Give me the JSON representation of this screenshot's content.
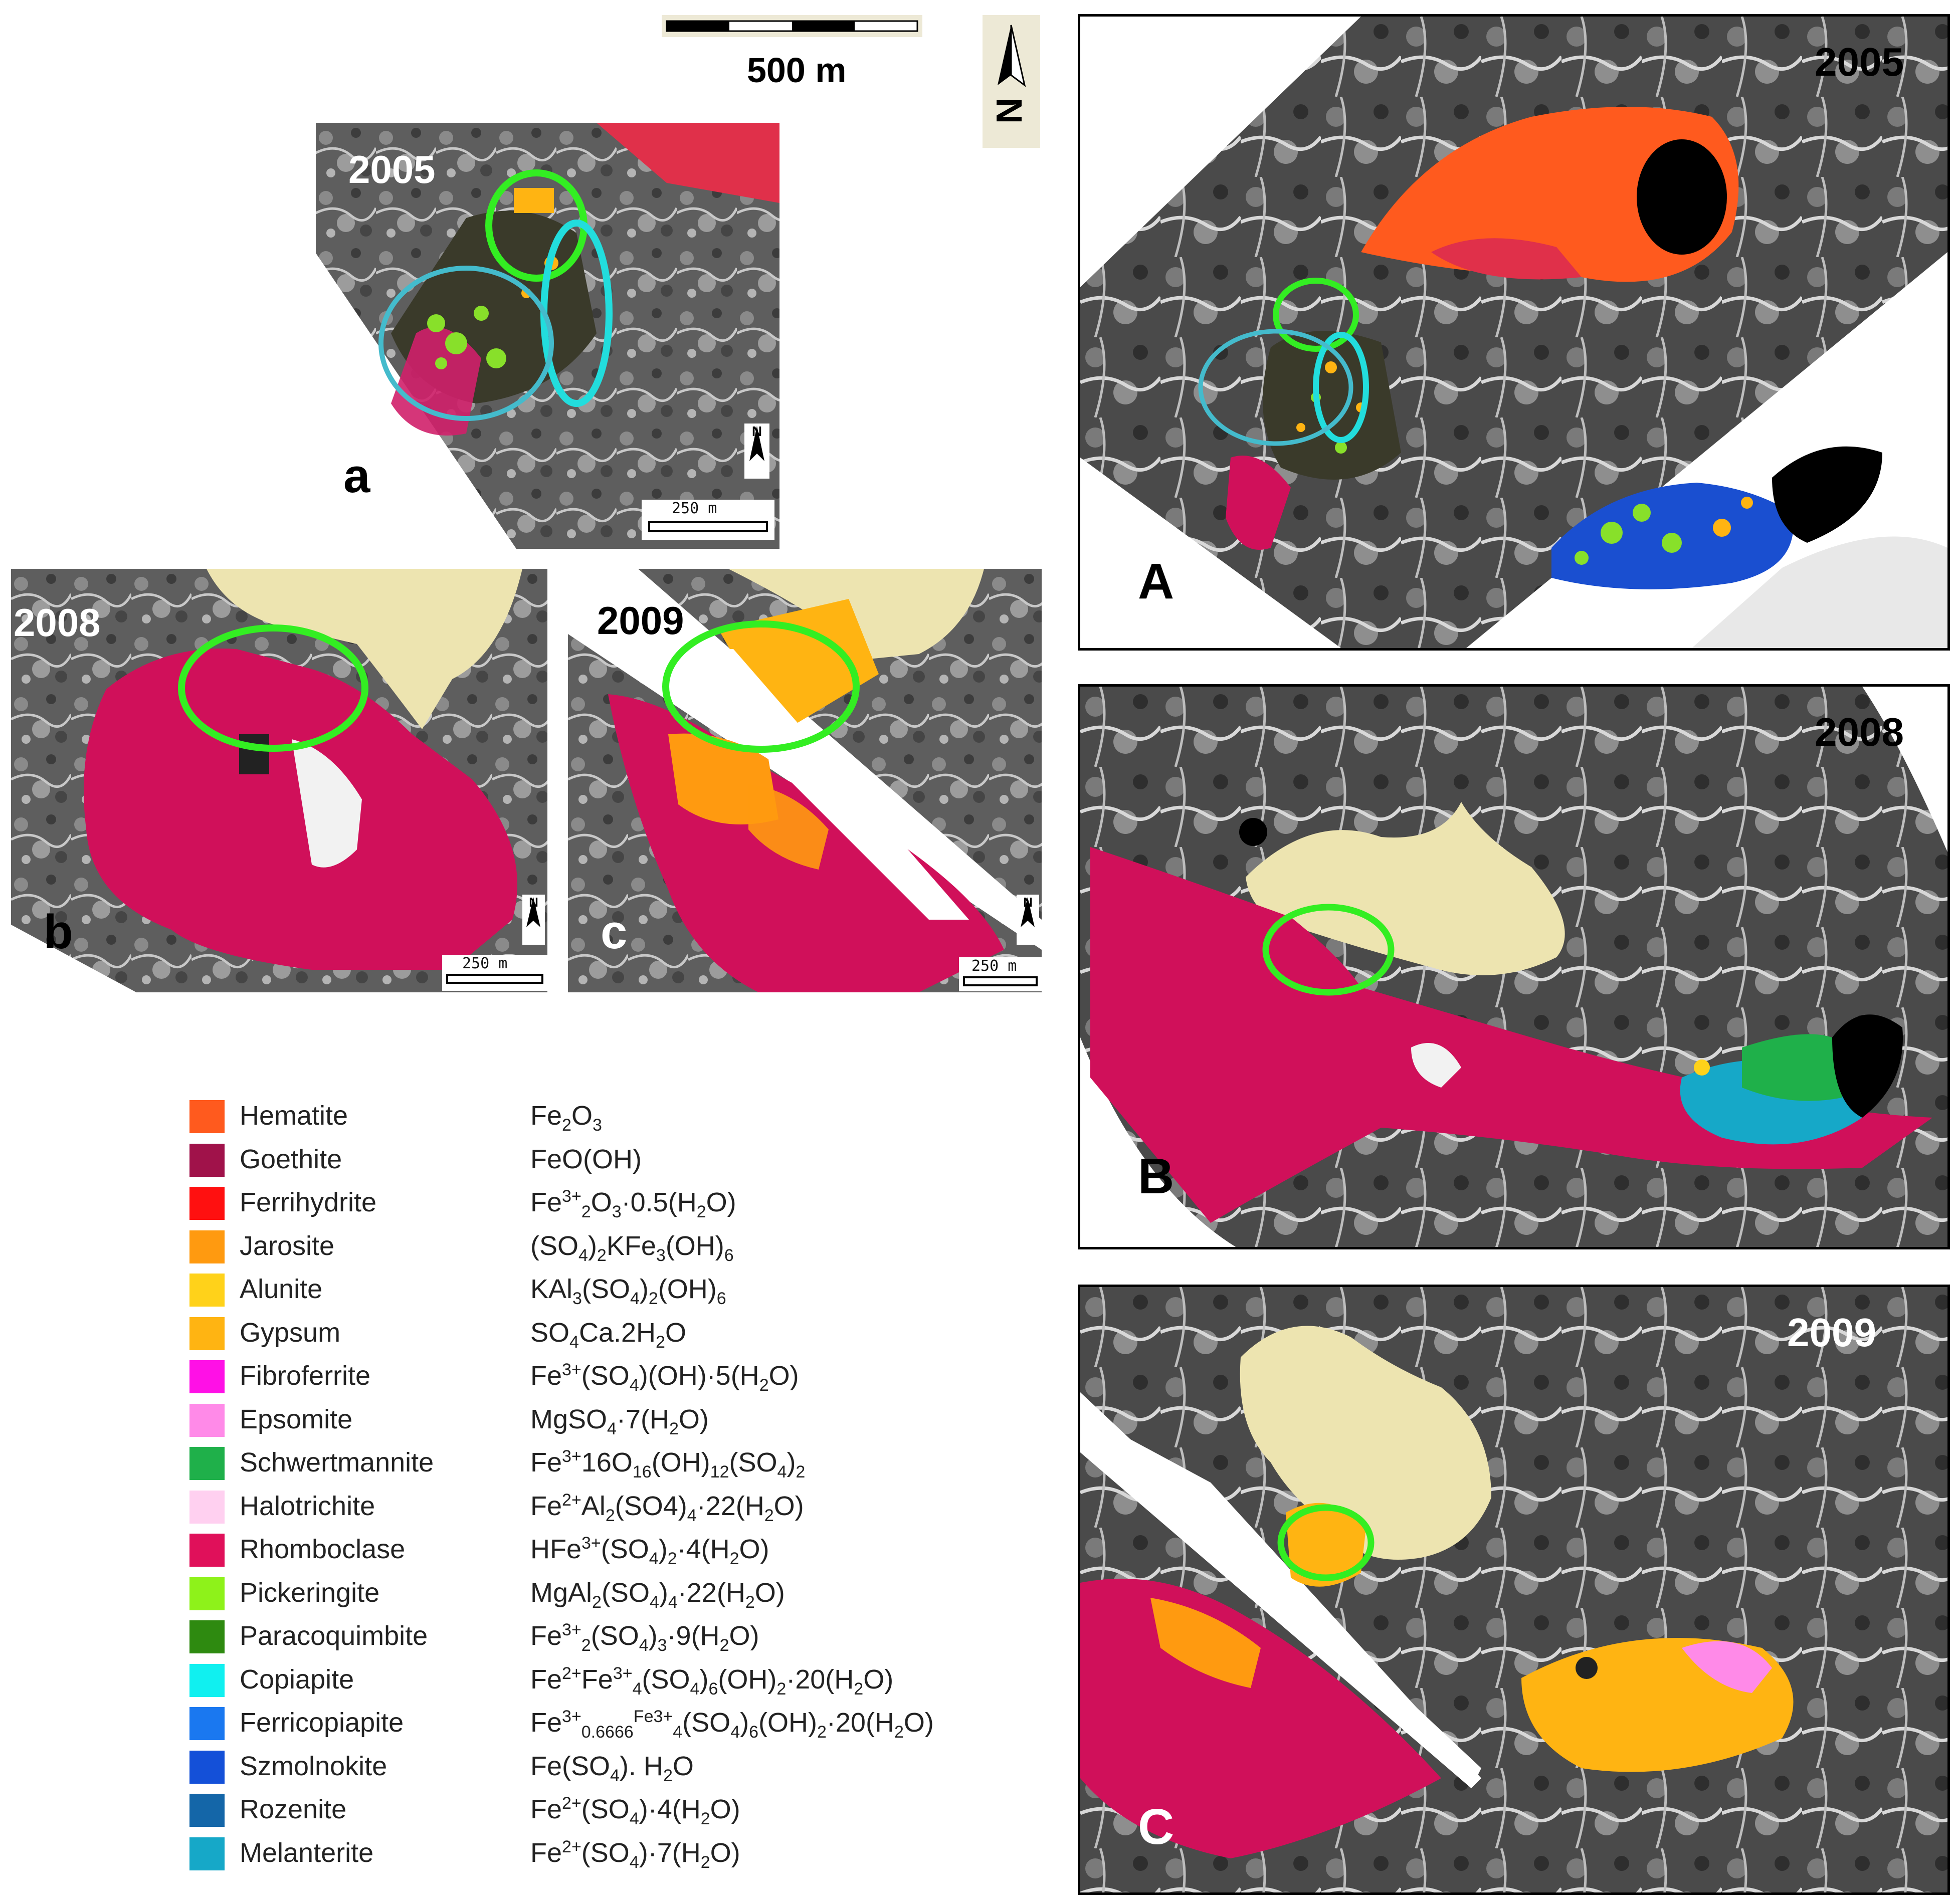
{
  "scale_bar": {
    "label": "500 m"
  },
  "north_arrow": {
    "label": "N"
  },
  "panels": {
    "a": {
      "year": "2005",
      "label": "a",
      "scale": "250 m",
      "north": "N"
    },
    "b": {
      "year": "2008",
      "label": "b",
      "scale": "250 m",
      "north": "N"
    },
    "c": {
      "year": "2009",
      "label": "c",
      "scale": "250 m",
      "north": "N"
    },
    "A": {
      "year": "2005",
      "label": "A"
    },
    "B": {
      "year": "2008",
      "label": "B"
    },
    "C": {
      "year": "2009",
      "label": "C"
    }
  },
  "colors": {
    "ellipse_green": "#33ee22",
    "ellipse_cyan": "#22dddd",
    "ellipse_blue": "#44bbcc",
    "tailings_beige": "#ede4b0",
    "grey_base": "#6e6e6e"
  },
  "legend": [
    {
      "name": "Hematite",
      "formula_html": "Fe<sub>2</sub>O<sub>3</sub>",
      "color": "#ff5a1e"
    },
    {
      "name": "Goethite",
      "formula_html": "FeO(OH)",
      "color": "#a0124a"
    },
    {
      "name": "Ferrihydrite",
      "formula_html": "Fe<sup>3+</sup><sub>2</sub>O<sub>3</sub>·0.5(H<sub>2</sub>O)",
      "color": "#ff1010"
    },
    {
      "name": "Jarosite",
      "formula_html": "(SO<sub>4</sub>)<sub>2</sub>KFe<sub>3</sub>(OH)<sub>6</sub>",
      "color": "#ff9a10"
    },
    {
      "name": "Alunite",
      "formula_html": "KAl<sub>3</sub>(SO<sub>4</sub>)<sub>2</sub>(OH)<sub>6</sub>",
      "color": "#ffd21a"
    },
    {
      "name": "Gypsum",
      "formula_html": "SO<sub>4</sub>Ca.2H<sub>2</sub>O",
      "color": "#ffb412"
    },
    {
      "name": "Fibroferrite",
      "formula_html": "Fe<sup>3+</sup>(SO<sub>4</sub>)(OH)·5(H<sub>2</sub>O)",
      "color": "#ff10e6"
    },
    {
      "name": "Epsomite",
      "formula_html": "MgSO<sub>4</sub>·7(H<sub>2</sub>O)",
      "color": "#ff8ae8"
    },
    {
      "name": "Schwertmannite",
      "formula_html": "Fe<sup>3+</sup>16O<sub>16</sub>(OH)<sub>12</sub>(SO<sub>4</sub>)<sub>2</sub>",
      "color": "#1fb04a"
    },
    {
      "name": "Halotrichite",
      "formula_html": "Fe<sup>2+</sup>Al<sub>2</sub>(SO4)<sub>4</sub>·22(H<sub>2</sub>O)",
      "color": "#ffd0f0"
    },
    {
      "name": "Rhomboclase",
      "formula_html": "HFe<sup>3+</sup>(SO<sub>4</sub>)<sub>2</sub>·4(H<sub>2</sub>O)",
      "color": "#e0105a"
    },
    {
      "name": "Pickeringite",
      "formula_html": "MgAl<sub>2</sub>(SO<sub>4</sub>)<sub>4</sub>·22(H<sub>2</sub>O)",
      "color": "#8ef21a"
    },
    {
      "name": "Paracoquimbite",
      "formula_html": "Fe<sup>3+</sup><sub>2</sub>(SO<sub>4</sub>)<sub>3</sub>·9(H<sub>2</sub>O)",
      "color": "#2e8a10"
    },
    {
      "name": "Copiapite",
      "formula_html": "Fe<sup>2+</sup>Fe<sup>3+</sup><sub>4</sub>(SO<sub>4</sub>)<sub>6</sub>(OH)<sub>2</sub>·20(H<sub>2</sub>O)",
      "color": "#10f0f0"
    },
    {
      "name": "Ferricopiapite",
      "formula_html": "Fe<sup>3+</sup><sub>0.6666</sub><sup>Fe3+</sup><sub>4</sub>(SO<sub>4</sub>)<sub>6</sub>(OH)<sub>2</sub>·20(H<sub>2</sub>O)",
      "color": "#1a78f0"
    },
    {
      "name": "Szmolnokite",
      "formula_html": "Fe(SO<sub>4</sub>). H<sub>2</sub>O",
      "color": "#1450d8"
    },
    {
      "name": "Rozenite",
      "formula_html": "Fe<sup>2+</sup>(SO<sub>4</sub>)·4(H<sub>2</sub>O)",
      "color": "#1466a8"
    },
    {
      "name": "Melanterite",
      "formula_html": "Fe<sup>2+</sup>(SO<sub>4</sub>)·7(H<sub>2</sub>O)",
      "color": "#16a8c8"
    }
  ]
}
